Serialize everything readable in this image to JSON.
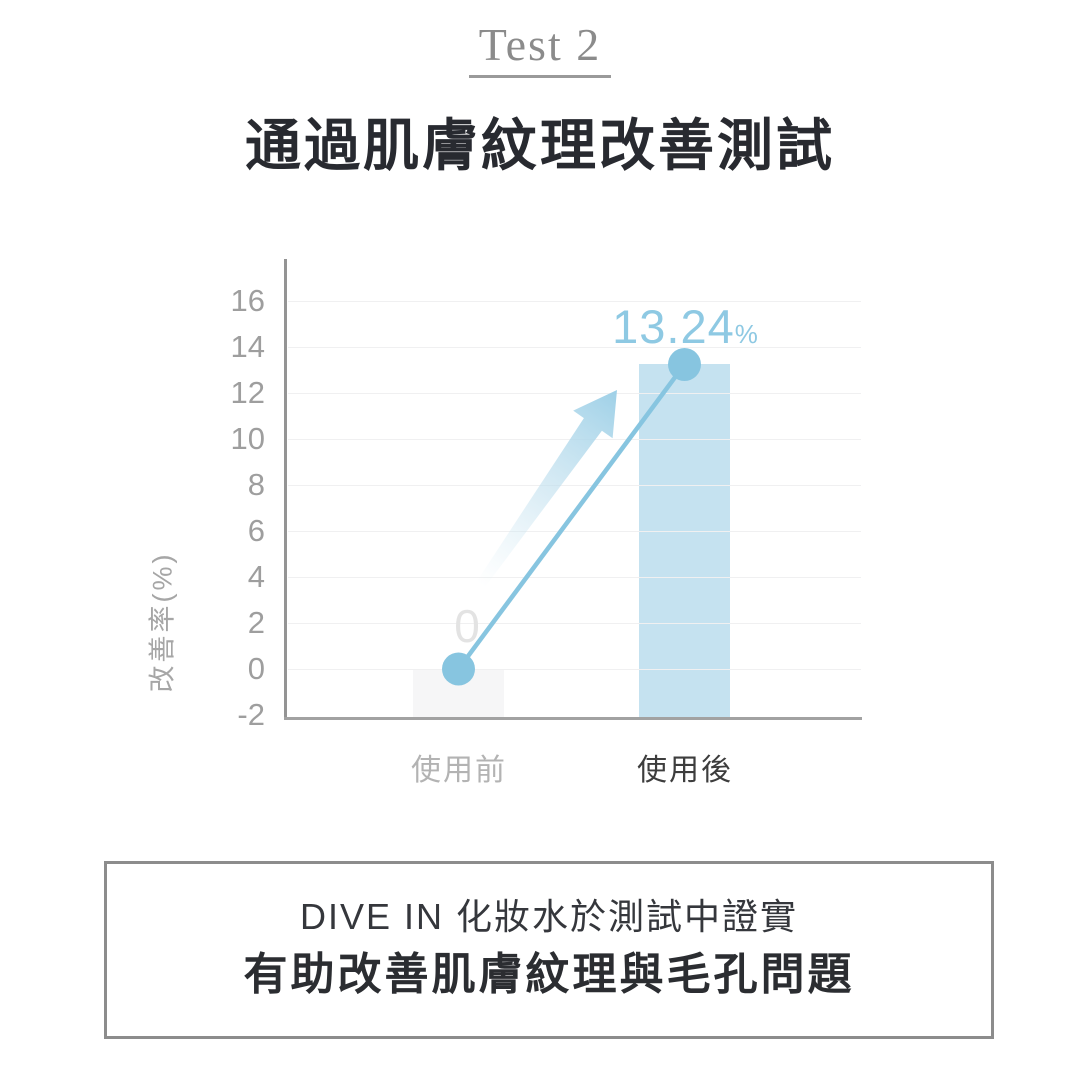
{
  "header": {
    "badge": "Test 2",
    "title": "通過肌膚紋理改善測試"
  },
  "chart_data": {
    "type": "bar",
    "categories": [
      "使用前",
      "使用後"
    ],
    "values": [
      0,
      13.24
    ],
    "series": [
      {
        "name": "改善率",
        "values": [
          0,
          13.24
        ]
      }
    ],
    "value_label": {
      "number": "13.24",
      "suffix": "%"
    },
    "zero_label": "0",
    "ylabel": "改善率(%)",
    "yticks": [
      16,
      14,
      12,
      10,
      8,
      6,
      4,
      2,
      0,
      -2
    ],
    "ylim": [
      -2.1,
      17.8
    ],
    "grid": true,
    "legend_position": "none",
    "annotation": "upward-trend-arrow",
    "colors": {
      "bar_before": "#f6f6f7",
      "bar_after": "#c5e2f0",
      "trend_line": "#87c5e0",
      "value_label": "#8ec9e3",
      "zero_label": "#e3e3e3",
      "axis": "#9b9b9b",
      "grid": "#f0f0f1",
      "tick_text": "#9e9e9e",
      "category_before": "#b3b3b3",
      "category_after": "#3d3d3d"
    }
  },
  "footer": {
    "line1": "DIVE IN 化妝水於測試中證實",
    "line2": "有助改善肌膚紋理與毛孔問題"
  }
}
